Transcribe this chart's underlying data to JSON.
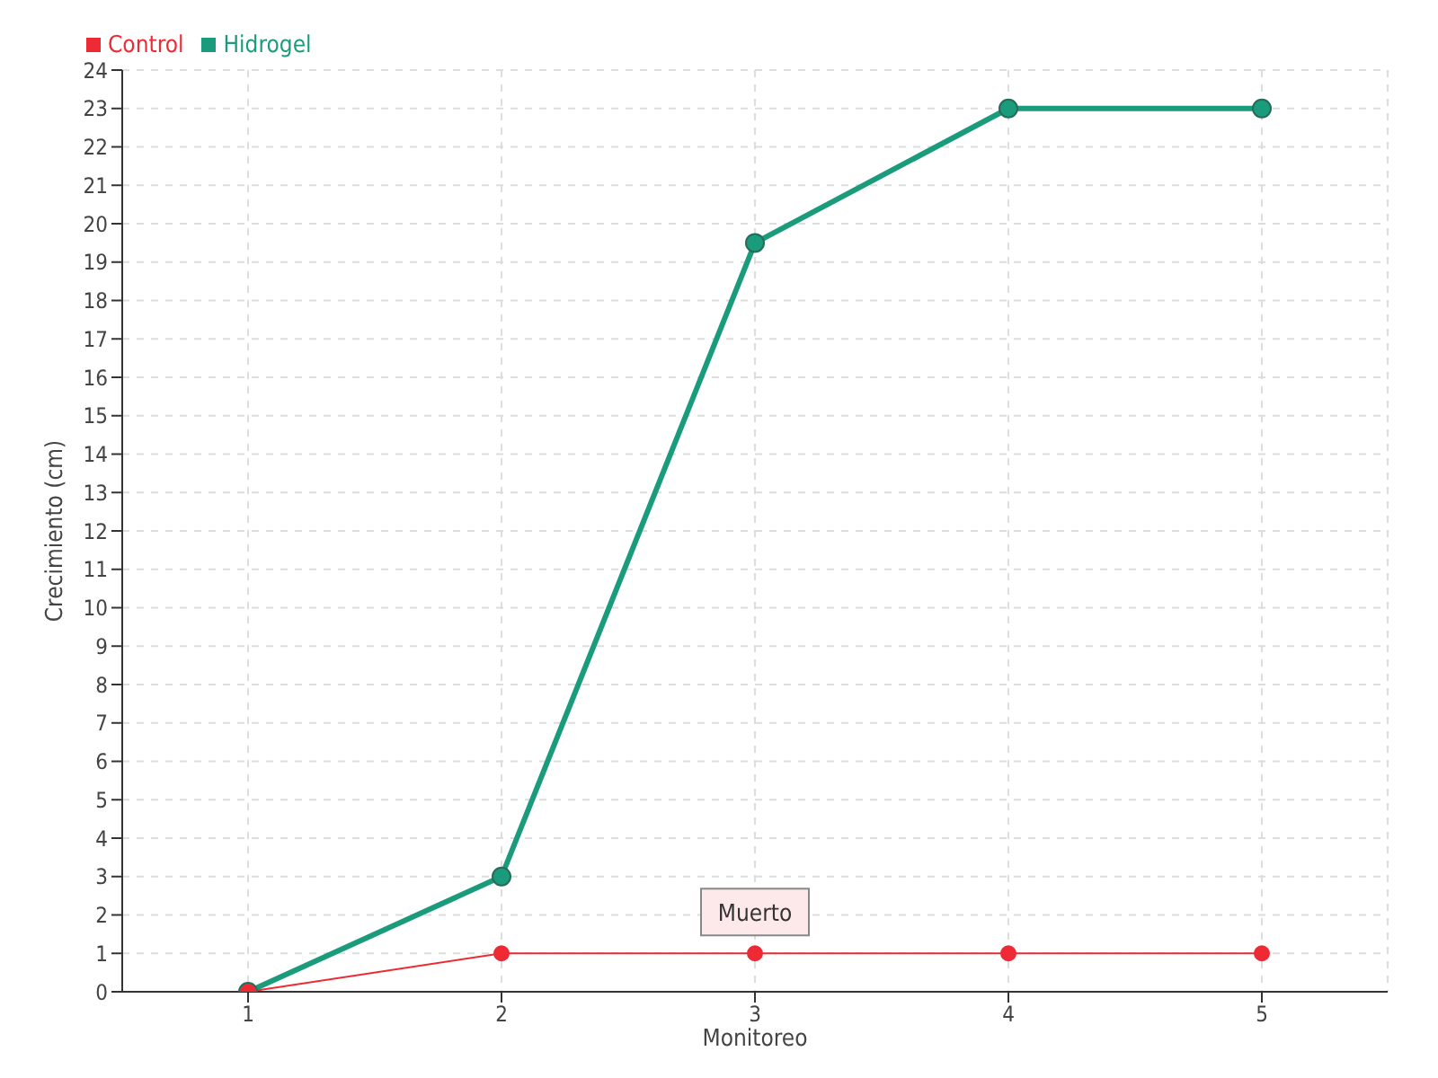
{
  "chart_data": {
    "type": "line",
    "xlabel": "Monitoreo",
    "ylabel": "Crecimiento (cm)",
    "categories": [
      "1",
      "2",
      "3",
      "4",
      "5"
    ],
    "series": [
      {
        "name": "Hidrogel",
        "color": "#1a9c7c",
        "values": [
          0,
          3,
          19.5,
          23,
          23
        ]
      },
      {
        "name": "Control",
        "color": "#ee2a35",
        "values": [
          0,
          1,
          1,
          1,
          1
        ]
      }
    ],
    "ylim": [
      0,
      24
    ],
    "yticks": [
      0,
      1,
      2,
      3,
      4,
      5,
      6,
      7,
      8,
      9,
      10,
      11,
      12,
      13,
      14,
      15,
      16,
      17,
      18,
      19,
      20,
      21,
      22,
      23,
      24
    ],
    "grid": true,
    "legend": "top left",
    "marker": "circle",
    "line_style": "solid",
    "annotations": [
      {
        "text": "Muerto",
        "x": "3",
        "y": 1
      }
    ]
  }
}
